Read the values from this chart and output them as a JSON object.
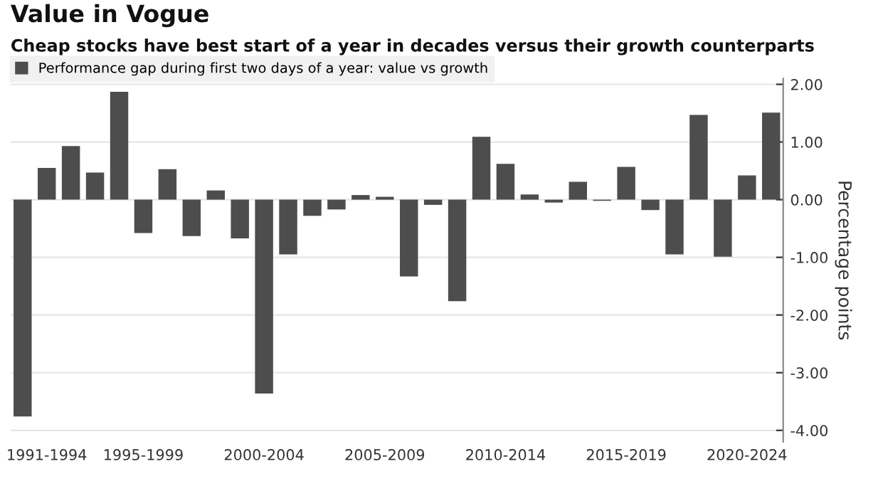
{
  "chart_data": {
    "type": "bar",
    "title": "Value in Vogue",
    "subtitle": "Cheap stocks have best start of a year in decades versus their growth counterparts",
    "ylabel": "Percentage points",
    "categories": [
      null,
      "1991-1994",
      null,
      null,
      null,
      "1995-1999",
      null,
      null,
      null,
      null,
      "2000-2004",
      null,
      null,
      null,
      null,
      "2005-2009",
      null,
      null,
      null,
      null,
      "2010-2014",
      null,
      null,
      null,
      null,
      "2015-2019",
      null,
      null,
      null,
      null,
      "2020-2024",
      null
    ],
    "series": [
      {
        "name": "Performance gap during first two days of a year: value vs growth",
        "color": "#4d4d4d",
        "values": [
          -3.76,
          0.55,
          0.93,
          0.47,
          1.87,
          -0.58,
          0.53,
          -0.63,
          0.16,
          -0.67,
          -3.36,
          -0.95,
          -0.28,
          -0.17,
          0.08,
          0.05,
          -1.33,
          -0.09,
          -1.76,
          1.09,
          0.62,
          0.09,
          -0.05,
          0.31,
          -0.02,
          0.57,
          -0.18,
          -0.95,
          1.47,
          -0.99,
          0.42,
          1.51
        ]
      }
    ],
    "ylim": [
      -4.2,
      2.1
    ],
    "yticks": [
      {
        "value": 2,
        "label": "2.00"
      },
      {
        "value": 1,
        "label": "1.00"
      },
      {
        "value": 0,
        "label": "0.00"
      },
      {
        "value": -1,
        "label": "-1.00"
      },
      {
        "value": -2,
        "label": "-2.00"
      },
      {
        "value": -3,
        "label": "-3.00"
      },
      {
        "value": -4,
        "label": "-4.00"
      }
    ],
    "grid": "y",
    "legend": "top left"
  }
}
